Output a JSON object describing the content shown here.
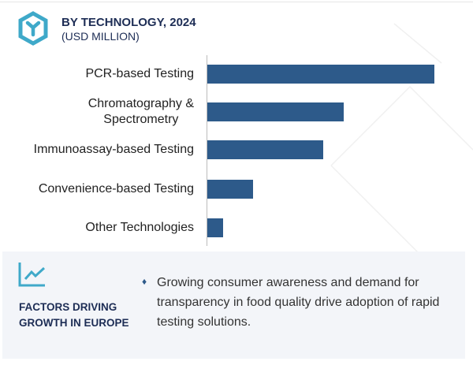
{
  "header": {
    "title": "BY TECHNOLOGY, 2024",
    "subtitle": "(USD MILLION)"
  },
  "chart_data": {
    "type": "bar",
    "orientation": "horizontal",
    "title": "BY TECHNOLOGY, 2024",
    "ylabel": "(USD MILLION)",
    "categories": [
      "PCR-based Testing",
      "Chromatography & Spectrometry",
      "Immunoassay-based Testing",
      "Convenience-based Testing",
      "Other Technologies"
    ],
    "values": [
      100,
      60,
      51,
      20,
      7
    ],
    "value_note": "relative bar lengths (no axis values shown)",
    "xlim": [
      0,
      100
    ],
    "grid": false,
    "color": "#2d5a8a"
  },
  "factors": {
    "title": "FACTORS DRIVING GROWTH IN EUROPE",
    "text": "Growing consumer awareness and demand for transparency in food quality drive adoption of rapid testing solutions."
  },
  "colors": {
    "accent": "#3fa9c9",
    "navy": "#1d2d55",
    "bar": "#2d5a8a"
  }
}
